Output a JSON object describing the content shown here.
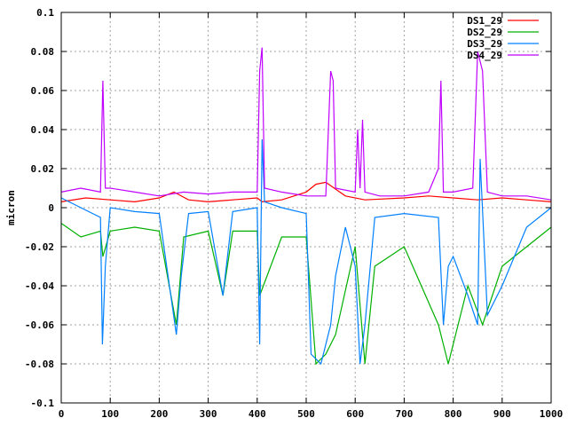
{
  "chart_data": {
    "type": "line",
    "xlabel": "",
    "ylabel": "micron",
    "xlim": [
      0,
      1000
    ],
    "ylim": [
      -0.1,
      0.1
    ],
    "xticks": [
      "0",
      "100",
      "200",
      "300",
      "400",
      "500",
      "600",
      "700",
      "800",
      "900",
      "1000"
    ],
    "yticks": [
      "-0.1",
      "-0.08",
      "-0.06",
      "-0.04",
      "-0.02",
      "0",
      "0.02",
      "0.04",
      "0.06",
      "0.08",
      "0.1"
    ],
    "grid": true,
    "legend_position": "top-right",
    "series": [
      {
        "name": "DS1_29",
        "color": "#ff0000",
        "x": [
          0,
          50,
          100,
          150,
          200,
          230,
          260,
          300,
          350,
          400,
          410,
          450,
          500,
          520,
          540,
          580,
          620,
          700,
          750,
          800,
          850,
          900,
          950,
          1000
        ],
        "y": [
          0.003,
          0.005,
          0.004,
          0.003,
          0.005,
          0.008,
          0.004,
          0.003,
          0.004,
          0.005,
          0.003,
          0.004,
          0.008,
          0.012,
          0.013,
          0.006,
          0.004,
          0.005,
          0.006,
          0.005,
          0.004,
          0.005,
          0.004,
          0.003
        ]
      },
      {
        "name": "DS2_29",
        "color": "#00b000",
        "x": [
          0,
          40,
          80,
          85,
          100,
          150,
          200,
          235,
          250,
          300,
          330,
          350,
          400,
          405,
          450,
          500,
          520,
          540,
          560,
          600,
          620,
          640,
          700,
          770,
          790,
          830,
          860,
          900,
          950,
          1000
        ],
        "y": [
          -0.008,
          -0.015,
          -0.012,
          -0.025,
          -0.012,
          -0.01,
          -0.012,
          -0.06,
          -0.015,
          -0.012,
          -0.045,
          -0.012,
          -0.012,
          -0.045,
          -0.015,
          -0.015,
          -0.08,
          -0.075,
          -0.065,
          -0.02,
          -0.08,
          -0.03,
          -0.02,
          -0.06,
          -0.08,
          -0.04,
          -0.06,
          -0.03,
          -0.02,
          -0.01
        ]
      },
      {
        "name": "DS3_29",
        "color": "#0080ff",
        "x": [
          0,
          40,
          80,
          84,
          90,
          100,
          150,
          200,
          235,
          245,
          260,
          300,
          330,
          350,
          400,
          405,
          410,
          415,
          450,
          500,
          510,
          530,
          550,
          560,
          580,
          600,
          610,
          620,
          640,
          700,
          770,
          780,
          790,
          800,
          830,
          850,
          855,
          870,
          900,
          950,
          1000
        ],
        "y": [
          0.005,
          0.0,
          -0.005,
          -0.07,
          -0.03,
          0.0,
          -0.002,
          -0.003,
          -0.065,
          -0.035,
          -0.003,
          -0.002,
          -0.045,
          -0.002,
          0.0,
          -0.07,
          0.035,
          0.003,
          0.0,
          -0.003,
          -0.075,
          -0.08,
          -0.06,
          -0.035,
          -0.01,
          -0.03,
          -0.08,
          -0.06,
          -0.005,
          -0.003,
          -0.005,
          -0.06,
          -0.03,
          -0.025,
          -0.045,
          -0.06,
          0.025,
          -0.055,
          -0.04,
          -0.01,
          0.0
        ]
      },
      {
        "name": "DS4_29",
        "color": "#c000ff",
        "x": [
          0,
          40,
          80,
          85,
          90,
          100,
          150,
          200,
          250,
          300,
          350,
          400,
          405,
          410,
          415,
          450,
          500,
          540,
          550,
          555,
          560,
          600,
          605,
          610,
          615,
          620,
          650,
          700,
          750,
          770,
          775,
          780,
          800,
          840,
          850,
          860,
          870,
          900,
          950,
          1000
        ],
        "y": [
          0.008,
          0.01,
          0.008,
          0.065,
          0.01,
          0.01,
          0.008,
          0.006,
          0.008,
          0.007,
          0.008,
          0.008,
          0.07,
          0.082,
          0.01,
          0.008,
          0.006,
          0.006,
          0.07,
          0.065,
          0.01,
          0.008,
          0.04,
          0.01,
          0.045,
          0.008,
          0.006,
          0.006,
          0.008,
          0.02,
          0.065,
          0.008,
          0.008,
          0.01,
          0.08,
          0.07,
          0.008,
          0.006,
          0.006,
          0.004
        ]
      }
    ]
  }
}
